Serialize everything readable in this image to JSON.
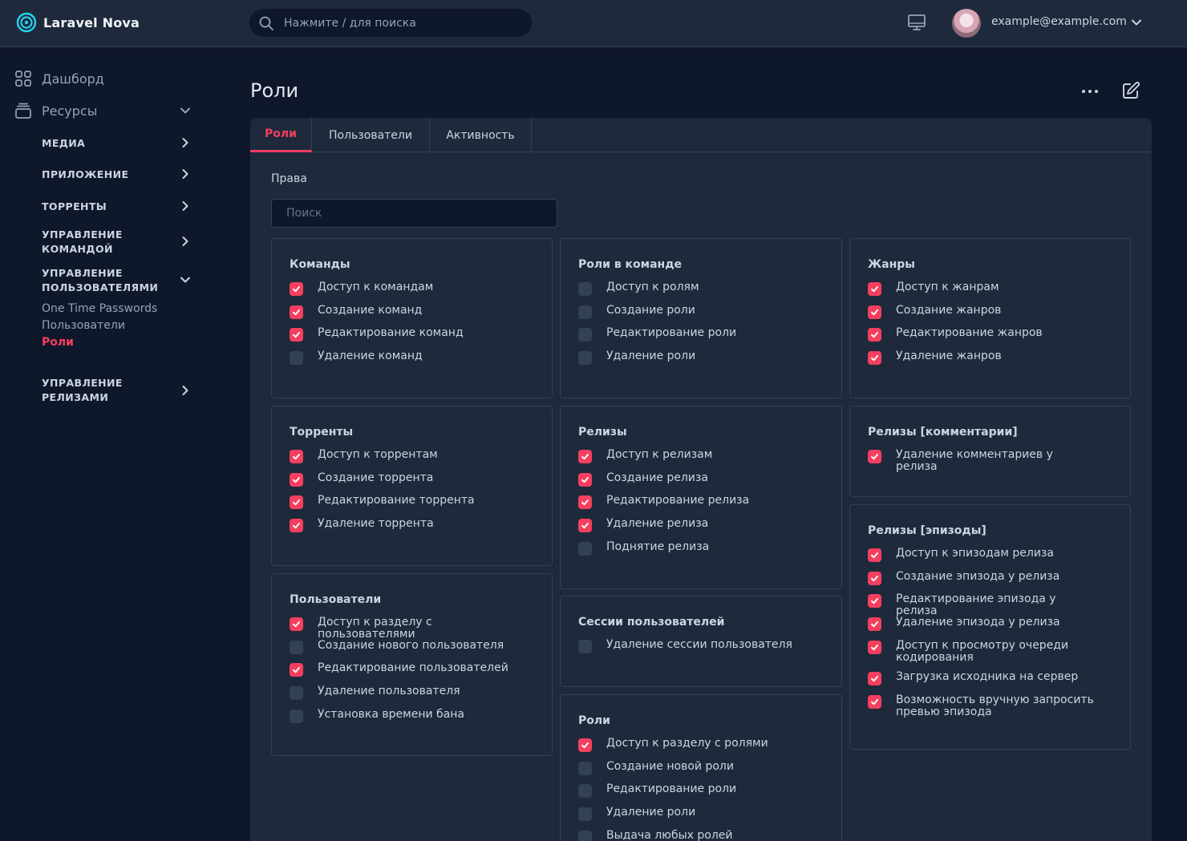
{
  "app": {
    "name": "Laravel Nova"
  },
  "header": {
    "search_placeholder": "Нажмите / для поиска",
    "user_email": "example@example.com"
  },
  "sidebar": {
    "dashboard": "Дашборд",
    "resources": "Ресурсы",
    "groups": {
      "media": "МЕДИА",
      "app": "ПРИЛОЖЕНИЕ",
      "torrents": "ТОРРЕНТЫ",
      "teams": "УПРАВЛЕНИЕ КОМАНДОЙ",
      "users": "УПРАВЛЕНИЕ ПОЛЬЗОВАТЕЛЯМИ",
      "releases": "УПРАВЛЕНИЕ РЕЛИЗАМИ"
    },
    "user_items": [
      "One Time Passwords",
      "Пользователи",
      "Роли"
    ]
  },
  "page": {
    "title": "Роли",
    "tabs": [
      "Роли",
      "Пользователи",
      "Активность"
    ],
    "rights_label": "Права",
    "search_placeholder": "Поиск"
  },
  "cards": [
    {
      "title": "Команды",
      "items": [
        {
          "label": "Доступ к командам",
          "checked": true
        },
        {
          "label": "Создание команд",
          "checked": true
        },
        {
          "label": "Редактирование команд",
          "checked": true
        },
        {
          "label": "Удаление команд",
          "checked": false
        }
      ]
    },
    {
      "title": "Роли в команде",
      "items": [
        {
          "label": "Доступ к ролям",
          "checked": false
        },
        {
          "label": "Создание роли",
          "checked": false
        },
        {
          "label": "Редактирование роли",
          "checked": false
        },
        {
          "label": "Удаление роли",
          "checked": false
        }
      ]
    },
    {
      "title": "Жанры",
      "items": [
        {
          "label": "Доступ к жанрам",
          "checked": true
        },
        {
          "label": "Создание жанров",
          "checked": true
        },
        {
          "label": "Редактирование жанров",
          "checked": true
        },
        {
          "label": "Удаление жанров",
          "checked": true
        }
      ]
    },
    {
      "title": "Торренты",
      "items": [
        {
          "label": "Доступ к торрентам",
          "checked": true
        },
        {
          "label": "Создание торрента",
          "checked": true
        },
        {
          "label": "Редактирование торрента",
          "checked": true
        },
        {
          "label": "Удаление торрента",
          "checked": true
        }
      ]
    },
    {
      "title": "Релизы",
      "items": [
        {
          "label": "Доступ к релизам",
          "checked": true
        },
        {
          "label": "Создание релиза",
          "checked": true
        },
        {
          "label": "Редактирование релиза",
          "checked": true
        },
        {
          "label": "Удаление релиза",
          "checked": true
        },
        {
          "label": "Поднятие релиза",
          "checked": false
        }
      ]
    },
    {
      "title": "Релизы [комментарии]",
      "items": [
        {
          "label": "Удаление комментариев у релиза",
          "checked": true
        }
      ]
    },
    {
      "title": "Релизы [эпизоды]",
      "items": [
        {
          "label": "Доступ к эпизодам релиза",
          "checked": true
        },
        {
          "label": "Создание эпизода у релиза",
          "checked": true
        },
        {
          "label": "Редактирование эпизода у релиза",
          "checked": true
        },
        {
          "label": "Удаление эпизода у релиза",
          "checked": true
        },
        {
          "label": "Доступ к просмотру очереди кодирования",
          "checked": true
        },
        {
          "label": "Загрузка исходника на сервер",
          "checked": true
        },
        {
          "label": "Возможность вручную запросить превью эпизода",
          "checked": true
        }
      ]
    },
    {
      "title": "Пользователи",
      "items": [
        {
          "label": "Доступ к разделу с пользователями",
          "checked": true
        },
        {
          "label": "Создание нового пользователя",
          "checked": false
        },
        {
          "label": "Редактирование пользователей",
          "checked": true
        },
        {
          "label": "Удаление пользователя",
          "checked": false
        },
        {
          "label": "Установка времени бана",
          "checked": false
        }
      ]
    },
    {
      "title": "Сессии пользователей",
      "items": [
        {
          "label": "Удаление сессии пользователя",
          "checked": false
        }
      ]
    },
    {
      "title": "Роли",
      "items": [
        {
          "label": "Доступ к разделу с ролями",
          "checked": true
        },
        {
          "label": "Создание новой роли",
          "checked": false
        },
        {
          "label": "Редактирование роли",
          "checked": false
        },
        {
          "label": "Удаление роли",
          "checked": false
        },
        {
          "label": "Выдача любых ролей",
          "checked": false
        }
      ]
    }
  ],
  "colors": {
    "accent": "#f43f5e",
    "logo": "#22d3ee",
    "background": "#0f172a",
    "surface": "#1e293b"
  }
}
